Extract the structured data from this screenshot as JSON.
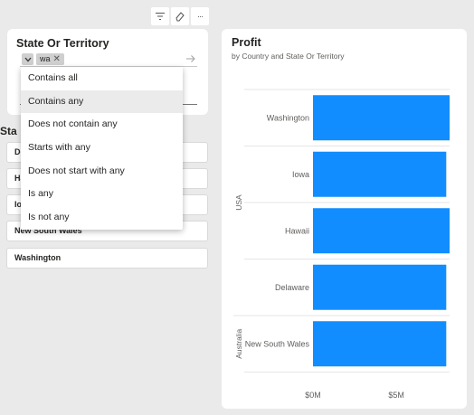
{
  "toolbar": {
    "items": [
      {
        "name": "filter-icon"
      },
      {
        "name": "eraser-icon"
      },
      {
        "name": "more-options-icon",
        "label": "···"
      }
    ]
  },
  "filter": {
    "title": "State Or Territory",
    "chip_label": "wa",
    "chip_remove": "✕",
    "apply_icon": "arrow-right-icon"
  },
  "dropdown": {
    "selected_index": 1,
    "options": [
      "Contains all",
      "Contains any",
      "Does not contain any",
      "Starts with any",
      "Does not start with any",
      "Is any",
      "Is not any"
    ]
  },
  "slicer": {
    "title": "Sta",
    "items": [
      "De",
      "Ha",
      "Io",
      "New South Wales",
      "Washington"
    ]
  },
  "chart": {
    "title": "Profit",
    "subtitle": "by Country and State Or Territory",
    "bar_color": "#118dff"
  },
  "chart_data": {
    "type": "bar",
    "orientation": "horizontal",
    "title": "Profit",
    "subtitle": "by Country and State Or Territory",
    "groups": [
      {
        "name": "USA",
        "categories": [
          "Washington",
          "Iowa",
          "Hawaii",
          "Delaware"
        ]
      },
      {
        "name": "Australia",
        "categories": [
          "New South Wales"
        ]
      }
    ],
    "categories": [
      "Washington",
      "Iowa",
      "Hawaii",
      "Delaware",
      "New South Wales"
    ],
    "values": [
      8.2,
      8.0,
      8.2,
      8.0,
      8.0
    ],
    "unit": "$M",
    "xlim": [
      0,
      8.2
    ],
    "xticks": [
      {
        "value": 0,
        "label": "$0M"
      },
      {
        "value": 5,
        "label": "$5M"
      }
    ],
    "grid": true
  }
}
